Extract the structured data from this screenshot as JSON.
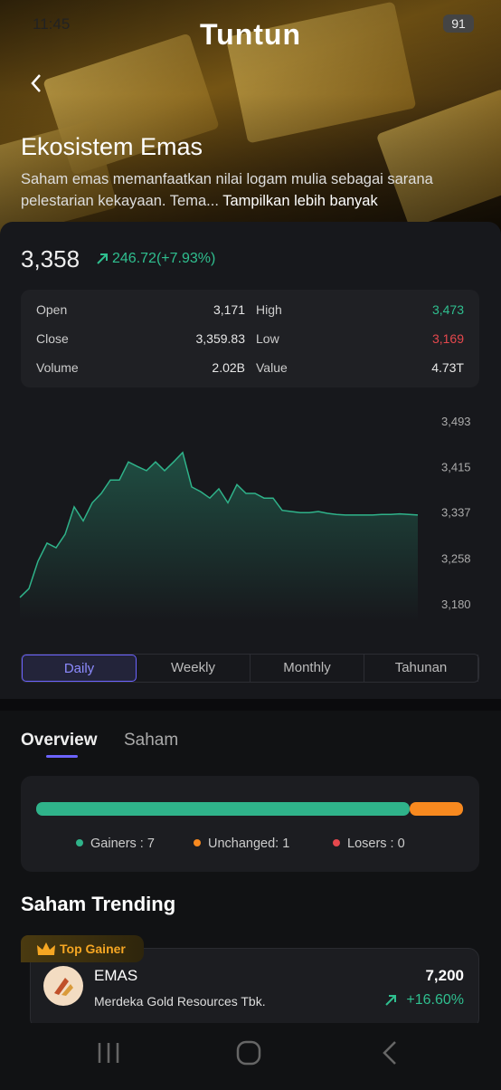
{
  "status_bar": {
    "time": "11:45",
    "battery": "91"
  },
  "header": {
    "brand": "Tuntun",
    "title": "Ekosistem Emas",
    "description": "Saham emas memanfaatkan nilai logam mulia sebagai sarana pelestarian kekayaan. Tema...",
    "more": "Tampilkan lebih banyak"
  },
  "price": {
    "value": "3,358",
    "change": "246.72(+7.93%)",
    "color": "#2fbf8f"
  },
  "stats": [
    {
      "label": "Open",
      "value": "3,171",
      "color": "#e6e6e6"
    },
    {
      "label": "High",
      "value": "3,473",
      "color": "#2fbf8f"
    },
    {
      "label": "Close",
      "value": "3,359.83",
      "color": "#e6e6e6"
    },
    {
      "label": "Low",
      "value": "3,169",
      "color": "#e5484d"
    },
    {
      "label": "Volume",
      "value": "2.02B",
      "color": "#e6e6e6"
    },
    {
      "label": "Value",
      "value": "4.73T",
      "color": "#e6e6e6"
    }
  ],
  "chart": {
    "type": "line",
    "color": "#2fb38a",
    "ylim": [
      3180,
      3493
    ],
    "yticks": [
      {
        "value": 3493,
        "label": "3,493"
      },
      {
        "value": 3415,
        "label": "3,415"
      },
      {
        "value": 3337,
        "label": "3,337"
      },
      {
        "value": 3258,
        "label": "3,258"
      },
      {
        "value": 3180,
        "label": "3,180"
      }
    ],
    "values": [
      3191,
      3206,
      3253,
      3284,
      3276,
      3299,
      3346,
      3322,
      3353,
      3369,
      3392,
      3392,
      3423,
      3415,
      3408,
      3423,
      3408,
      3423,
      3439,
      3380,
      3372,
      3361,
      3377,
      3353,
      3384,
      3369,
      3369,
      3361,
      3361,
      3340,
      3338,
      3336,
      3336,
      3338,
      3335,
      3333,
      3332,
      3332,
      3332,
      3332,
      3333,
      3333,
      3334,
      3333,
      3332
    ]
  },
  "periods": [
    "Daily",
    "Weekly",
    "Monthly",
    "Tahunan"
  ],
  "tabs": [
    "Overview",
    "Saham"
  ],
  "breadth": [
    {
      "label": "Gainers : 7",
      "count": 7,
      "color": "#2fb38a"
    },
    {
      "label": "Unchanged: 1",
      "count": 1,
      "color": "#f7891f"
    },
    {
      "label": "Losers : 0",
      "count": 0,
      "color": "#e5484d"
    }
  ],
  "trending": {
    "title": "Saham Trending",
    "badge": "Top Gainer",
    "code": "EMAS",
    "name": "Merdeka Gold Resources Tbk.",
    "price": "7,200",
    "change": "+16.60%"
  }
}
